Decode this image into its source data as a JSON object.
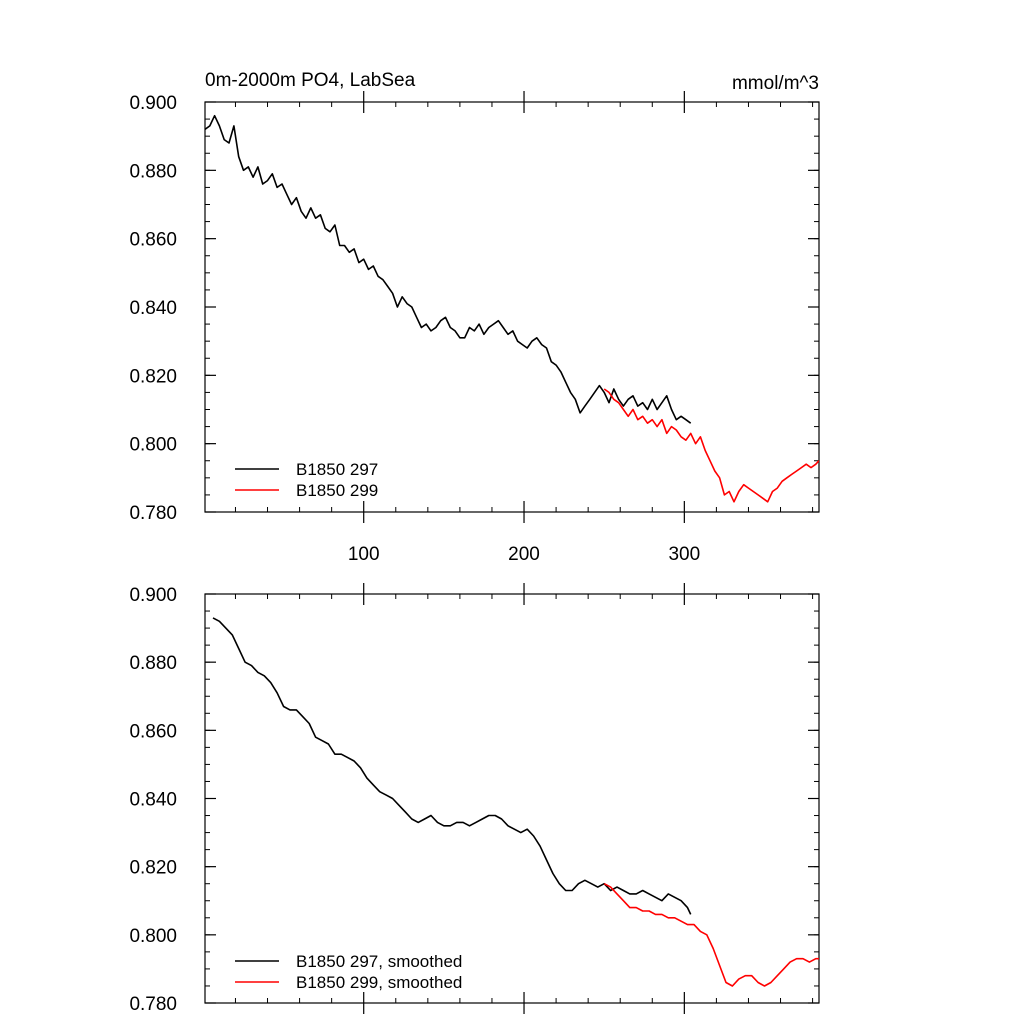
{
  "chart_data": [
    {
      "type": "line",
      "title": "0m-2000m PO4, LabSea",
      "units": "mmol/m^3",
      "xlim": [
        1,
        384
      ],
      "ylim": [
        0.78,
        0.9
      ],
      "x_major_ticks": [
        100,
        200,
        300
      ],
      "x_tick_labels": [
        "100",
        "200",
        "300"
      ],
      "y_major_ticks": [
        0.78,
        0.8,
        0.82,
        0.84,
        0.86,
        0.88,
        0.9
      ],
      "y_tick_labels": [
        "0.780",
        "0.800",
        "0.820",
        "0.840",
        "0.860",
        "0.880",
        "0.900"
      ],
      "legend_position": "bottom-left",
      "series": [
        {
          "name": "B1850 297",
          "color": "#000000",
          "x": [
            1,
            4,
            7,
            10,
            13,
            16,
            19,
            22,
            25,
            28,
            31,
            34,
            37,
            40,
            43,
            46,
            49,
            52,
            55,
            58,
            61,
            64,
            67,
            70,
            73,
            76,
            79,
            82,
            85,
            88,
            91,
            94,
            97,
            100,
            103,
            106,
            109,
            112,
            115,
            118,
            121,
            124,
            127,
            130,
            133,
            136,
            139,
            142,
            145,
            148,
            151,
            154,
            157,
            160,
            163,
            166,
            169,
            172,
            175,
            178,
            181,
            184,
            187,
            190,
            193,
            196,
            199,
            202,
            205,
            208,
            211,
            214,
            217,
            220,
            223,
            226,
            229,
            232,
            235,
            238,
            241,
            244,
            247,
            250,
            253,
            256,
            259,
            262,
            265,
            268,
            271,
            274,
            277,
            280,
            283,
            286,
            289,
            292,
            295,
            298,
            301,
            304
          ],
          "values": [
            0.892,
            0.893,
            0.896,
            0.893,
            0.889,
            0.888,
            0.893,
            0.884,
            0.88,
            0.881,
            0.878,
            0.881,
            0.876,
            0.877,
            0.879,
            0.875,
            0.876,
            0.873,
            0.87,
            0.872,
            0.868,
            0.866,
            0.869,
            0.866,
            0.867,
            0.863,
            0.862,
            0.864,
            0.858,
            0.858,
            0.856,
            0.857,
            0.853,
            0.854,
            0.851,
            0.852,
            0.849,
            0.848,
            0.846,
            0.844,
            0.84,
            0.843,
            0.841,
            0.84,
            0.837,
            0.834,
            0.835,
            0.833,
            0.834,
            0.836,
            0.837,
            0.834,
            0.833,
            0.831,
            0.831,
            0.834,
            0.833,
            0.835,
            0.832,
            0.834,
            0.835,
            0.836,
            0.834,
            0.832,
            0.833,
            0.83,
            0.829,
            0.828,
            0.83,
            0.831,
            0.829,
            0.828,
            0.824,
            0.823,
            0.821,
            0.818,
            0.815,
            0.813,
            0.809,
            0.811,
            0.813,
            0.815,
            0.817,
            0.815,
            0.812,
            0.816,
            0.813,
            0.811,
            0.813,
            0.814,
            0.811,
            0.812,
            0.81,
            0.813,
            0.81,
            0.812,
            0.814,
            0.81,
            0.807,
            0.808,
            0.807,
            0.806
          ]
        },
        {
          "name": "B1850 299",
          "color": "#ff0000",
          "x": [
            250,
            253,
            256,
            259,
            262,
            265,
            268,
            271,
            274,
            277,
            280,
            283,
            286,
            289,
            292,
            295,
            298,
            301,
            304,
            307,
            310,
            313,
            316,
            319,
            322,
            325,
            328,
            331,
            334,
            337,
            340,
            343,
            346,
            349,
            352,
            355,
            358,
            361,
            364,
            367,
            370,
            373,
            376,
            379,
            382,
            384
          ],
          "values": [
            0.816,
            0.815,
            0.813,
            0.812,
            0.81,
            0.808,
            0.81,
            0.807,
            0.808,
            0.806,
            0.807,
            0.805,
            0.807,
            0.803,
            0.805,
            0.804,
            0.802,
            0.801,
            0.803,
            0.8,
            0.802,
            0.798,
            0.795,
            0.792,
            0.79,
            0.785,
            0.786,
            0.783,
            0.786,
            0.788,
            0.787,
            0.786,
            0.785,
            0.784,
            0.783,
            0.786,
            0.787,
            0.789,
            0.79,
            0.791,
            0.792,
            0.793,
            0.794,
            0.793,
            0.794,
            0.795
          ]
        }
      ]
    },
    {
      "type": "line",
      "xlim": [
        1,
        384
      ],
      "ylim": [
        0.78,
        0.9
      ],
      "x_major_ticks": [
        100,
        200,
        300
      ],
      "y_major_ticks": [
        0.78,
        0.8,
        0.82,
        0.84,
        0.86,
        0.88,
        0.9
      ],
      "y_tick_labels": [
        "0.780",
        "0.800",
        "0.820",
        "0.840",
        "0.860",
        "0.880",
        "0.900"
      ],
      "legend_position": "bottom-left",
      "series": [
        {
          "name": "B1850 297, smoothed",
          "color": "#000000",
          "x": [
            6,
            10,
            14,
            18,
            22,
            26,
            30,
            34,
            38,
            42,
            46,
            50,
            54,
            58,
            62,
            66,
            70,
            74,
            78,
            82,
            86,
            90,
            94,
            98,
            102,
            106,
            110,
            114,
            118,
            122,
            126,
            130,
            134,
            138,
            142,
            146,
            150,
            154,
            158,
            162,
            166,
            170,
            174,
            178,
            182,
            186,
            190,
            194,
            198,
            202,
            206,
            210,
            214,
            218,
            222,
            226,
            230,
            234,
            238,
            242,
            246,
            250,
            254,
            258,
            262,
            266,
            270,
            274,
            278,
            282,
            286,
            290,
            294,
            298,
            302,
            304
          ],
          "values": [
            0.893,
            0.892,
            0.89,
            0.888,
            0.884,
            0.88,
            0.879,
            0.877,
            0.876,
            0.874,
            0.871,
            0.867,
            0.866,
            0.866,
            0.864,
            0.862,
            0.858,
            0.857,
            0.856,
            0.853,
            0.853,
            0.852,
            0.851,
            0.849,
            0.846,
            0.844,
            0.842,
            0.841,
            0.84,
            0.838,
            0.836,
            0.834,
            0.833,
            0.834,
            0.835,
            0.833,
            0.832,
            0.832,
            0.833,
            0.833,
            0.832,
            0.833,
            0.834,
            0.835,
            0.835,
            0.834,
            0.832,
            0.831,
            0.83,
            0.831,
            0.829,
            0.826,
            0.822,
            0.818,
            0.815,
            0.813,
            0.813,
            0.815,
            0.816,
            0.815,
            0.814,
            0.815,
            0.813,
            0.814,
            0.813,
            0.812,
            0.812,
            0.813,
            0.812,
            0.811,
            0.81,
            0.812,
            0.811,
            0.81,
            0.808,
            0.806
          ]
        },
        {
          "name": "B1850 299, smoothed",
          "color": "#ff0000",
          "x": [
            250,
            254,
            258,
            262,
            266,
            270,
            274,
            278,
            282,
            286,
            290,
            294,
            298,
            302,
            306,
            310,
            314,
            318,
            322,
            326,
            330,
            334,
            338,
            342,
            346,
            350,
            354,
            358,
            362,
            366,
            370,
            374,
            378,
            382,
            384
          ],
          "values": [
            0.815,
            0.814,
            0.812,
            0.81,
            0.808,
            0.808,
            0.807,
            0.807,
            0.806,
            0.806,
            0.805,
            0.805,
            0.804,
            0.803,
            0.803,
            0.801,
            0.8,
            0.796,
            0.791,
            0.786,
            0.785,
            0.787,
            0.788,
            0.788,
            0.786,
            0.785,
            0.786,
            0.788,
            0.79,
            0.792,
            0.793,
            0.793,
            0.792,
            0.793,
            0.793
          ]
        }
      ]
    }
  ]
}
